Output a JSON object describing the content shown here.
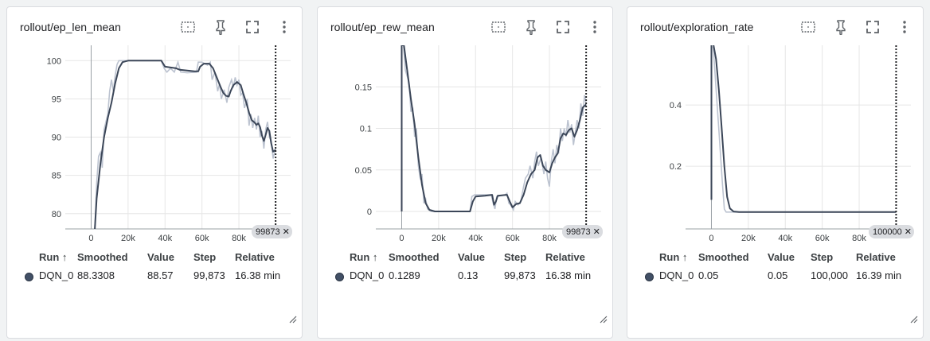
{
  "colors": {
    "smoothed": "#3b4658",
    "raw": "#bcc3d0",
    "grid": "#e6e6e6",
    "axis": "#9aa0a6",
    "run_dot": "#425066"
  },
  "icons": [
    "fit-domain-icon",
    "pin-icon",
    "fullscreen-icon",
    "more-vert-icon"
  ],
  "table_headers": {
    "run": "Run ↑",
    "smoothed": "Smoothed",
    "value": "Value",
    "step": "Step",
    "relative": "Relative"
  },
  "cards": [
    {
      "title": "rollout/ep_len_mean",
      "step_pill": "99873",
      "row": {
        "run": "DQN_0",
        "smoothed": "88.3308",
        "value": "88.57",
        "step": "99,873",
        "relative": "16.38 min"
      }
    },
    {
      "title": "rollout/ep_rew_mean",
      "step_pill": "99873",
      "row": {
        "run": "DQN_0",
        "smoothed": "0.1289",
        "value": "0.13",
        "step": "99,873",
        "relative": "16.38 min"
      }
    },
    {
      "title": "rollout/exploration_rate",
      "step_pill": "100000",
      "row": {
        "run": "DQN_0",
        "smoothed": "0.05",
        "value": "0.05",
        "step": "100,000",
        "relative": "16.39 min"
      }
    }
  ],
  "chart_data": [
    {
      "type": "line",
      "title": "rollout/ep_len_mean",
      "xlim": [
        -14000,
        108000
      ],
      "ylim": [
        78,
        102
      ],
      "xticks": [
        0,
        20000,
        40000,
        60000,
        80000
      ],
      "xtick_labels": [
        "0",
        "20k",
        "40k",
        "60k",
        "80k"
      ],
      "yticks": [
        80,
        85,
        90,
        95,
        100
      ],
      "ytick_labels": [
        "80",
        "85",
        "90",
        "95",
        "100"
      ],
      "grid": true,
      "cursor_step": 99873,
      "series": [
        {
          "smoothed": [
            [
              2000,
              78
            ],
            [
              3000,
              82
            ],
            [
              5000,
              86.5
            ],
            [
              7000,
              90
            ],
            [
              9000,
              92.5
            ],
            [
              11000,
              94.5
            ],
            [
              13000,
              97
            ],
            [
              15000,
              99
            ],
            [
              17000,
              99.8
            ],
            [
              20000,
              100
            ],
            [
              30000,
              100
            ],
            [
              38000,
              100
            ],
            [
              40000,
              99.2
            ],
            [
              46000,
              99
            ],
            [
              48000,
              98.8
            ],
            [
              52000,
              98.7
            ],
            [
              56000,
              98.6
            ],
            [
              58000,
              98.6
            ],
            [
              59000,
              99.2
            ],
            [
              61000,
              99.6
            ],
            [
              64000,
              99.6
            ],
            [
              66000,
              99
            ],
            [
              68000,
              97.8
            ],
            [
              70000,
              96.6
            ],
            [
              71500,
              95.8
            ],
            [
              73000,
              95.4
            ],
            [
              74500,
              95.3
            ],
            [
              75500,
              96
            ],
            [
              77000,
              96.8
            ],
            [
              79000,
              97.2
            ],
            [
              81000,
              96.8
            ],
            [
              82500,
              95.6
            ],
            [
              84000,
              94.5
            ],
            [
              85500,
              93.2
            ],
            [
              87000,
              92.2
            ],
            [
              88500,
              91.9
            ],
            [
              89500,
              91.6
            ],
            [
              90500,
              91.8
            ],
            [
              91500,
              91.3
            ],
            [
              92500,
              90.2
            ],
            [
              93500,
              89.5
            ],
            [
              94500,
              90.3
            ],
            [
              95500,
              91.2
            ],
            [
              96500,
              90.8
            ],
            [
              97500,
              89.2
            ],
            [
              98500,
              88.1
            ],
            [
              99873,
              88.33
            ]
          ],
          "raw": [
            [
              2000,
              78
            ],
            [
              3000,
              84
            ],
            [
              4000,
              87.5
            ],
            [
              5000,
              88
            ],
            [
              6000,
              86
            ],
            [
              7000,
              91
            ],
            [
              8000,
              92
            ],
            [
              9000,
              93
            ],
            [
              10000,
              96
            ],
            [
              11000,
              97.5
            ],
            [
              12000,
              96
            ],
            [
              13000,
              98
            ],
            [
              14000,
              99.5
            ],
            [
              15000,
              100
            ],
            [
              38000,
              100
            ],
            [
              39500,
              99
            ],
            [
              41000,
              98.5
            ],
            [
              43000,
              99
            ],
            [
              45000,
              98.5
            ],
            [
              47000,
              99.8
            ],
            [
              48500,
              98.5
            ],
            [
              52000,
              98.4
            ],
            [
              57000,
              98.5
            ],
            [
              58000,
              99.8
            ],
            [
              60000,
              99.8
            ],
            [
              63000,
              99.4
            ],
            [
              64500,
              99.8
            ],
            [
              65500,
              97.5
            ],
            [
              67000,
              98.5
            ],
            [
              68500,
              96
            ],
            [
              69500,
              97
            ],
            [
              70500,
              95
            ],
            [
              72000,
              96.2
            ],
            [
              73500,
              94.5
            ],
            [
              74500,
              96.5
            ],
            [
              76000,
              97.5
            ],
            [
              77000,
              96.5
            ],
            [
              78000,
              97.8
            ],
            [
              79000,
              96.8
            ],
            [
              80000,
              97.5
            ],
            [
              81000,
              95.5
            ],
            [
              82000,
              95.8
            ],
            [
              83000,
              93.8
            ],
            [
              84500,
              95
            ],
            [
              85500,
              91.5
            ],
            [
              86500,
              93
            ],
            [
              87500,
              91.2
            ],
            [
              88500,
              92.5
            ],
            [
              89500,
              91
            ],
            [
              90500,
              92.8
            ],
            [
              91500,
              90
            ],
            [
              92500,
              90.8
            ],
            [
              93500,
              88.5
            ],
            [
              94500,
              91
            ],
            [
              95500,
              92
            ],
            [
              96500,
              90
            ],
            [
              97500,
              89.5
            ],
            [
              98500,
              87.2
            ],
            [
              99873,
              88.57
            ]
          ]
        }
      ]
    },
    {
      "type": "line",
      "title": "rollout/ep_rew_mean",
      "xlim": [
        -14000,
        108000
      ],
      "ylim": [
        -0.021,
        0.2
      ],
      "xticks": [
        0,
        20000,
        40000,
        60000,
        80000
      ],
      "xtick_labels": [
        "0",
        "20k",
        "40k",
        "60k",
        "80k"
      ],
      "yticks": [
        0,
        0.05,
        0.1,
        0.15
      ],
      "ytick_labels": [
        "0",
        "0.05",
        "0.1",
        "0.15"
      ],
      "grid": true,
      "cursor_step": 99873,
      "series": [
        {
          "smoothed": [
            [
              0,
              0
            ],
            [
              0,
              0.2
            ],
            [
              1200,
              0.2
            ],
            [
              3000,
              0.17
            ],
            [
              5000,
              0.135
            ],
            [
              7000,
              0.105
            ],
            [
              9000,
              0.065
            ],
            [
              11000,
              0.032
            ],
            [
              13000,
              0.01
            ],
            [
              15000,
              0.002
            ],
            [
              18000,
              0
            ],
            [
              37000,
              0
            ],
            [
              38500,
              0.012
            ],
            [
              40000,
              0.018
            ],
            [
              45000,
              0.019
            ],
            [
              49000,
              0.02
            ],
            [
              50000,
              0.008
            ],
            [
              51000,
              0.012
            ],
            [
              52000,
              0.019
            ],
            [
              57000,
              0.02
            ],
            [
              58500,
              0.012
            ],
            [
              60000,
              0.005
            ],
            [
              62000,
              0.009
            ],
            [
              64000,
              0.01
            ],
            [
              66000,
              0.02
            ],
            [
              68000,
              0.035
            ],
            [
              70000,
              0.045
            ],
            [
              72000,
              0.05
            ],
            [
              73500,
              0.065
            ],
            [
              75000,
              0.068
            ],
            [
              76500,
              0.055
            ],
            [
              78000,
              0.05
            ],
            [
              80000,
              0.047
            ],
            [
              81500,
              0.058
            ],
            [
              83000,
              0.065
            ],
            [
              84500,
              0.07
            ],
            [
              86000,
              0.088
            ],
            [
              87500,
              0.094
            ],
            [
              89000,
              0.092
            ],
            [
              90500,
              0.098
            ],
            [
              92000,
              0.1
            ],
            [
              93500,
              0.09
            ],
            [
              95000,
              0.098
            ],
            [
              96500,
              0.11
            ],
            [
              98000,
              0.125
            ],
            [
              99873,
              0.1289
            ]
          ],
          "raw": [
            [
              1000,
              0.2
            ],
            [
              2000,
              0.17
            ],
            [
              4000,
              0.155
            ],
            [
              5000,
              0.12
            ],
            [
              6000,
              0.125
            ],
            [
              7000,
              0.09
            ],
            [
              8000,
              0.1
            ],
            [
              9000,
              0.055
            ],
            [
              10000,
              0.04
            ],
            [
              11000,
              0.045
            ],
            [
              12000,
              0.01
            ],
            [
              13000,
              0.015
            ],
            [
              14000,
              0.003
            ],
            [
              16000,
              0
            ],
            [
              37000,
              0
            ],
            [
              38000,
              0.018
            ],
            [
              39500,
              0.02
            ],
            [
              45000,
              0.02
            ],
            [
              48500,
              0.02
            ],
            [
              49500,
              0.01
            ],
            [
              50500,
              0.003
            ],
            [
              51500,
              0.018
            ],
            [
              56000,
              0.02
            ],
            [
              57000,
              0.022
            ],
            [
              58000,
              0.01
            ],
            [
              59000,
              0.008
            ],
            [
              60500,
              0.002
            ],
            [
              61500,
              0.012
            ],
            [
              63000,
              0.008
            ],
            [
              64500,
              0.012
            ],
            [
              66000,
              0.03
            ],
            [
              67000,
              0.04
            ],
            [
              68500,
              0.045
            ],
            [
              69500,
              0.055
            ],
            [
              71000,
              0.04
            ],
            [
              72000,
              0.06
            ],
            [
              73000,
              0.072
            ],
            [
              74000,
              0.055
            ],
            [
              75500,
              0.065
            ],
            [
              77000,
              0.045
            ],
            [
              78000,
              0.06
            ],
            [
              79000,
              0.04
            ],
            [
              80000,
              0.03
            ],
            [
              81000,
              0.06
            ],
            [
              82000,
              0.075
            ],
            [
              83000,
              0.058
            ],
            [
              84000,
              0.08
            ],
            [
              85000,
              0.07
            ],
            [
              86000,
              0.1
            ],
            [
              87000,
              0.085
            ],
            [
              88000,
              0.1
            ],
            [
              89000,
              0.09
            ],
            [
              90000,
              0.11
            ],
            [
              91000,
              0.095
            ],
            [
              92000,
              0.105
            ],
            [
              93000,
              0.08
            ],
            [
              94000,
              0.095
            ],
            [
              95000,
              0.11
            ],
            [
              96000,
              0.1
            ],
            [
              97000,
              0.13
            ],
            [
              98000,
              0.115
            ],
            [
              99000,
              0.14
            ],
            [
              99873,
              0.13
            ]
          ]
        }
      ]
    },
    {
      "type": "line",
      "title": "rollout/exploration_rate",
      "xlim": [
        -14000,
        108000
      ],
      "ylim": [
        -0.005,
        0.595
      ],
      "xticks": [
        0,
        20000,
        40000,
        60000,
        80000
      ],
      "xtick_labels": [
        "0",
        "20k",
        "40k",
        "60k",
        "80k"
      ],
      "yticks": [
        0.2,
        0.4
      ],
      "ytick_labels": [
        "0.2",
        "0.4"
      ],
      "grid": true,
      "cursor_step": 100000,
      "series": [
        {
          "smoothed": [
            [
              0,
              0.09
            ],
            [
              0,
              0.6
            ],
            [
              1000,
              0.6
            ],
            [
              2500,
              0.55
            ],
            [
              4000,
              0.45
            ],
            [
              5500,
              0.33
            ],
            [
              7000,
              0.2
            ],
            [
              8500,
              0.1
            ],
            [
              10000,
              0.062
            ],
            [
              12000,
              0.052
            ],
            [
              15000,
              0.05
            ],
            [
              100000,
              0.05
            ]
          ],
          "raw": [
            [
              1000,
              0.59
            ],
            [
              2000,
              0.5
            ],
            [
              3000,
              0.41
            ],
            [
              4000,
              0.32
            ],
            [
              5000,
              0.23
            ],
            [
              6000,
              0.14
            ],
            [
              7000,
              0.06
            ],
            [
              8000,
              0.05
            ],
            [
              100000,
              0.05
            ]
          ]
        }
      ]
    }
  ]
}
